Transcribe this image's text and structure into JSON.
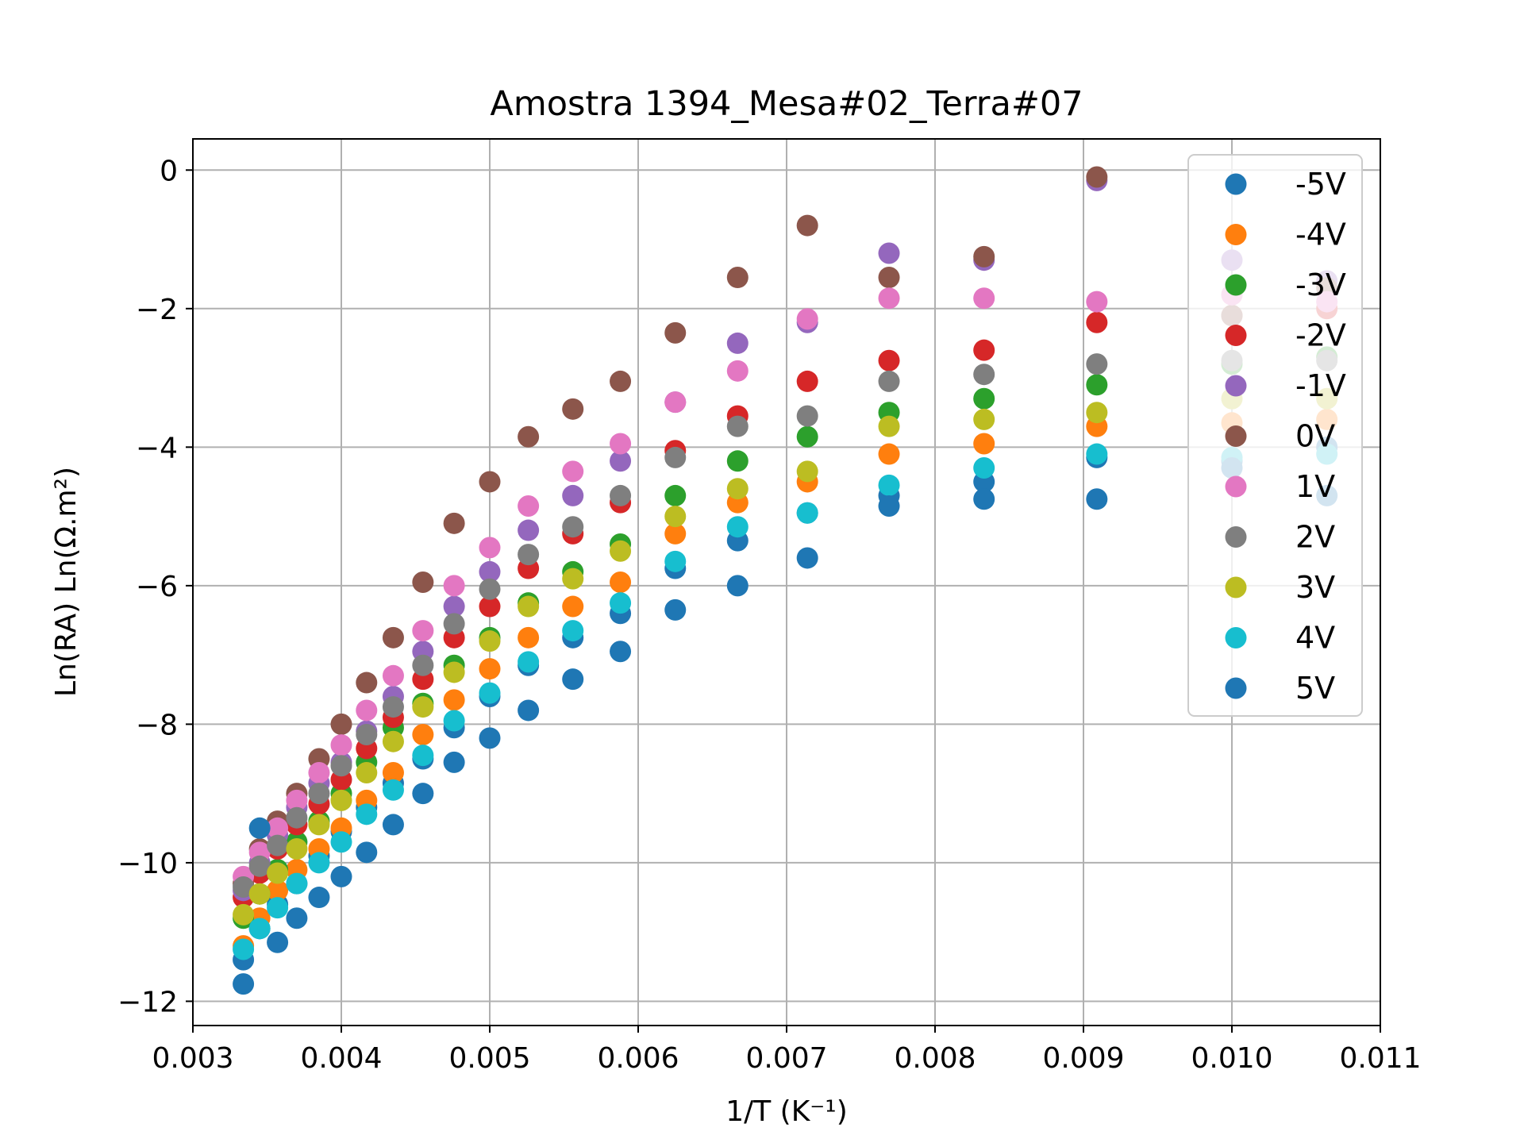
{
  "chart_data": {
    "type": "scatter",
    "title": "Amostra 1394_Mesa#02_Terra#07",
    "xlabel": "1/T (K⁻¹)",
    "ylabel": "Ln(RA) Ln(Ω.m²)",
    "xlim": [
      0.003,
      0.011
    ],
    "ylim": [
      -12.35,
      0.45
    ],
    "x_ticks": [
      0.003,
      0.004,
      0.005,
      0.006,
      0.007,
      0.008,
      0.009,
      0.01,
      0.011
    ],
    "x_tick_labels": [
      "0.003",
      "0.004",
      "0.005",
      "0.006",
      "0.007",
      "0.008",
      "0.009",
      "0.010",
      "0.011"
    ],
    "y_ticks": [
      0,
      -2,
      -4,
      -6,
      -8,
      -10,
      -12
    ],
    "y_tick_labels": [
      "0",
      "−2",
      "−4",
      "−6",
      "−8",
      "−10",
      "−12"
    ],
    "grid": true,
    "legend_position": "top-right",
    "x": [
      0.00334,
      0.00345,
      0.00357,
      0.0037,
      0.00385,
      0.004,
      0.00417,
      0.00435,
      0.00455,
      0.00476,
      0.005,
      0.00526,
      0.00556,
      0.00588,
      0.00625,
      0.00667,
      0.00714,
      0.00769,
      0.00833,
      0.00909,
      0.01,
      0.01064
    ],
    "series": [
      {
        "name": "-5V",
        "color": "#1f77b4",
        "values": [
          -11.4,
          -10.95,
          -10.6,
          -10.3,
          -9.9,
          -9.55,
          -9.2,
          -8.85,
          -8.5,
          -8.05,
          -7.6,
          -7.15,
          -6.75,
          -6.4,
          -5.75,
          -5.35,
          -4.95,
          -4.7,
          -4.5,
          -4.15,
          -4.2,
          -4.0
        ]
      },
      {
        "name": "-4V",
        "color": "#ff7f0e",
        "values": [
          -11.2,
          -10.8,
          -10.4,
          -10.1,
          -9.8,
          -9.5,
          -9.1,
          -8.7,
          -8.15,
          -7.65,
          -7.2,
          -6.75,
          -6.3,
          -5.95,
          -5.25,
          -4.8,
          -4.5,
          -4.1,
          -3.95,
          -3.7,
          -3.65,
          -3.6
        ]
      },
      {
        "name": "-3V",
        "color": "#2ca02c",
        "values": [
          -10.8,
          -10.45,
          -10.1,
          -9.7,
          -9.4,
          -9.0,
          -8.55,
          -8.05,
          -7.7,
          -7.15,
          -6.75,
          -6.25,
          -5.8,
          -5.4,
          -4.7,
          -4.2,
          -3.85,
          -3.5,
          -3.3,
          -3.1,
          -2.8,
          -2.7
        ]
      },
      {
        "name": "-2V",
        "color": "#d62728",
        "values": [
          -10.5,
          -10.15,
          -9.8,
          -9.45,
          -9.15,
          -8.8,
          -8.35,
          -7.9,
          -7.35,
          -6.75,
          -6.3,
          -5.75,
          -5.25,
          -4.8,
          -4.05,
          -3.55,
          -3.05,
          -2.75,
          -2.6,
          -2.2,
          -2.1,
          -2.0
        ]
      },
      {
        "name": "-1V",
        "color": "#9467bd",
        "values": [
          -10.4,
          -10.0,
          -9.6,
          -9.2,
          -8.85,
          -8.55,
          -8.1,
          -7.6,
          -6.95,
          -6.3,
          -5.8,
          -5.2,
          -4.7,
          -4.2,
          -3.35,
          -2.5,
          -2.2,
          -1.2,
          -1.3,
          -0.15,
          -1.3,
          -1.6
        ]
      },
      {
        "name": "0V",
        "color": "#8c564b",
        "values": [
          -10.3,
          -9.8,
          -9.4,
          -9.0,
          -8.5,
          -8.0,
          -7.4,
          -6.75,
          -5.95,
          -5.1,
          -4.5,
          -3.85,
          -3.45,
          -3.05,
          -2.35,
          -1.55,
          -0.8,
          -1.55,
          -1.25,
          -0.1,
          -2.1,
          -1.7
        ]
      },
      {
        "name": "1V",
        "color": "#e377c2",
        "values": [
          -10.2,
          -9.85,
          -9.5,
          -9.1,
          -8.7,
          -8.3,
          -7.8,
          -7.3,
          -6.65,
          -6.0,
          -5.45,
          -4.85,
          -4.35,
          -3.95,
          -3.35,
          -2.9,
          -2.15,
          -1.85,
          -1.85,
          -1.9,
          -1.8,
          -1.9
        ]
      },
      {
        "name": "2V",
        "color": "#7f7f7f",
        "values": [
          -10.35,
          -10.05,
          -9.75,
          -9.35,
          -9.0,
          -8.6,
          -8.15,
          -7.75,
          -7.15,
          -6.55,
          -6.05,
          -5.55,
          -5.15,
          -4.7,
          -4.15,
          -3.7,
          -3.55,
          -3.05,
          -2.95,
          -2.8,
          -2.75,
          -2.75
        ]
      },
      {
        "name": "3V",
        "color": "#bcbd22",
        "values": [
          -10.75,
          -10.45,
          -10.15,
          -9.8,
          -9.45,
          -9.1,
          -8.7,
          -8.25,
          -7.75,
          -7.25,
          -6.8,
          -6.3,
          -5.9,
          -5.5,
          -5.0,
          -4.6,
          -4.35,
          -3.7,
          -3.6,
          -3.5,
          -3.3,
          -3.3
        ]
      },
      {
        "name": "4V",
        "color": "#17becf",
        "values": [
          -11.25,
          -10.95,
          -10.65,
          -10.3,
          -10.0,
          -9.7,
          -9.3,
          -8.95,
          -8.45,
          -7.95,
          -7.55,
          -7.1,
          -6.65,
          -6.25,
          -5.65,
          -5.15,
          -4.95,
          -4.55,
          -4.3,
          -4.1,
          -4.15,
          -4.1
        ]
      },
      {
        "name": "5V",
        "color": "#1f77b4",
        "values": [
          -11.75,
          -9.5,
          -11.15,
          -10.8,
          -10.5,
          -10.2,
          -9.85,
          -9.45,
          -9.0,
          -8.55,
          -8.2,
          -7.8,
          -7.35,
          -6.95,
          -6.35,
          -6.0,
          -5.6,
          -4.85,
          -4.75,
          -4.75,
          -4.3,
          -4.7
        ]
      }
    ]
  }
}
